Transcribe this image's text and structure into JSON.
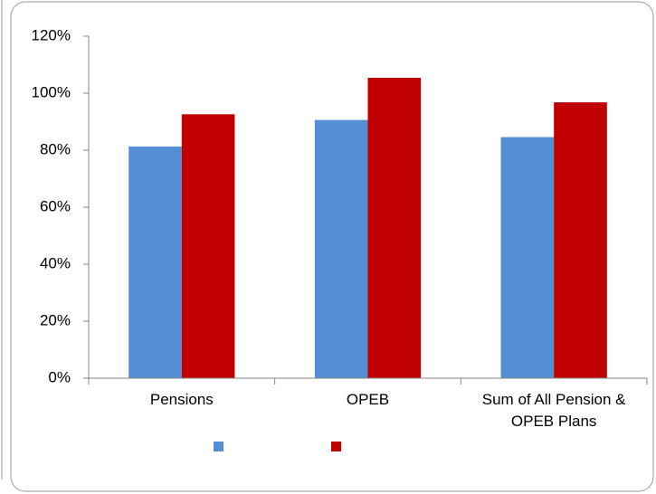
{
  "chart_data": {
    "type": "bar",
    "categories": [
      "Pensions",
      "OPEB",
      "Sum of All Pension & OPEB Plans"
    ],
    "series": [
      {
        "color": "#558ed5",
        "values": [
          81.3,
          90.6,
          84.6
        ]
      },
      {
        "color": "#c00000",
        "values": [
          92.6,
          105.4,
          96.8
        ]
      }
    ],
    "ylim": [
      0,
      120
    ],
    "yticks": [
      {
        "value": 0,
        "label": "0%"
      },
      {
        "value": 20,
        "label": "20%"
      },
      {
        "value": 40,
        "label": "40%"
      },
      {
        "value": 60,
        "label": "60%"
      },
      {
        "value": 80,
        "label": "80%"
      },
      {
        "value": 100,
        "label": "100%"
      },
      {
        "value": 120,
        "label": "120%"
      }
    ],
    "grid": false
  }
}
